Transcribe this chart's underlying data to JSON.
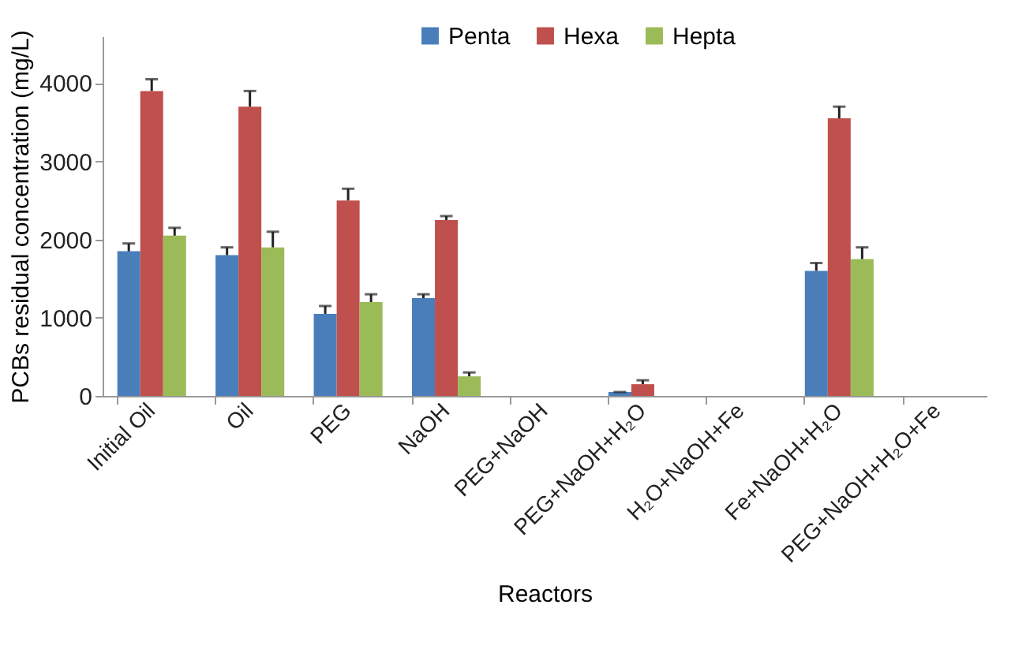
{
  "chart_data": {
    "type": "bar",
    "xlabel": "Reactors",
    "ylabel": "PCBs residual concentration (mg/L)",
    "categories": [
      "Initial Oil",
      "Oil",
      "PEG",
      "NaOH",
      "PEG+NaOH",
      "PEG+NaOH+H₂O",
      "H₂O+NaOH+Fe",
      "Fe+NaOH+H₂O",
      "PEG+NaOH+H₂O+Fe"
    ],
    "series": [
      {
        "name": "Penta",
        "color": "#4a7ebb",
        "values": [
          1850,
          1800,
          1050,
          1250,
          0,
          50,
          0,
          1600,
          0
        ],
        "errors": [
          [
            1850,
            1950
          ],
          [
            1800,
            1900
          ],
          [
            1050,
            1150
          ],
          [
            1250,
            1300
          ],
          null,
          [
            50,
            50
          ],
          null,
          [
            1600,
            1700
          ],
          null
        ]
      },
      {
        "name": "Hexa",
        "color": "#c0504d",
        "values": [
          3900,
          3700,
          2500,
          2250,
          0,
          150,
          0,
          3550,
          0
        ],
        "errors": [
          [
            3900,
            4050
          ],
          [
            3700,
            3900
          ],
          [
            2500,
            2650
          ],
          [
            2250,
            2300
          ],
          null,
          [
            150,
            200
          ],
          null,
          [
            3550,
            3700
          ],
          null
        ]
      },
      {
        "name": "Hepta",
        "color": "#9bbb59",
        "values": [
          2050,
          1900,
          1200,
          250,
          0,
          0,
          0,
          1750,
          0
        ],
        "errors": [
          [
            2050,
            2150
          ],
          [
            1900,
            2100
          ],
          [
            1200,
            1300
          ],
          [
            250,
            300
          ],
          null,
          null,
          null,
          [
            1750,
            1900
          ],
          null
        ]
      }
    ],
    "ylim": [
      0,
      4600
    ],
    "yticks": [
      0,
      1000,
      2000,
      3000,
      4000
    ],
    "grid": false,
    "legend": "top"
  }
}
